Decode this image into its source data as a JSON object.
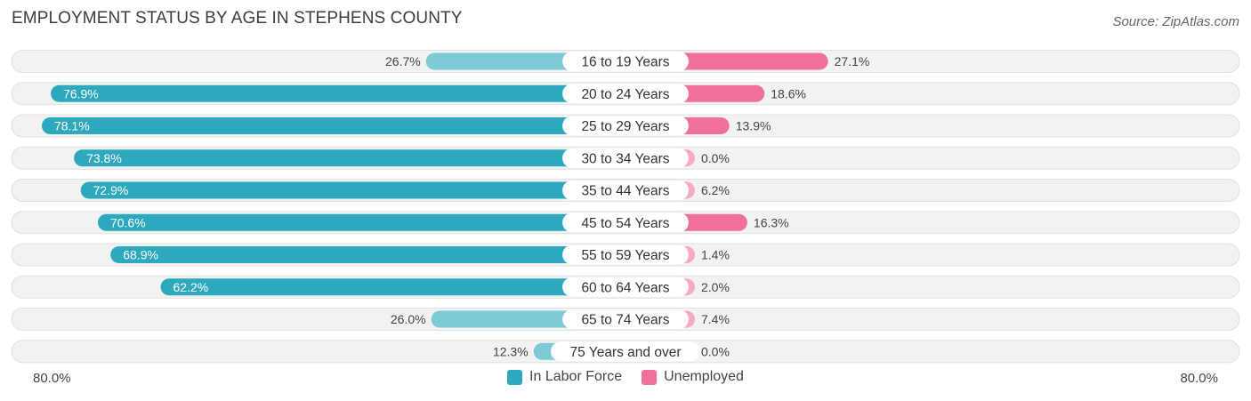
{
  "chart_data": {
    "type": "bar",
    "orientation": "horizontal-diverging",
    "title": "EMPLOYMENT STATUS BY AGE IN STEPHENS COUNTY",
    "source": "Source: ZipAtlas.com",
    "categories": [
      "16 to 19 Years",
      "20 to 24 Years",
      "25 to 29 Years",
      "30 to 34 Years",
      "35 to 44 Years",
      "45 to 54 Years",
      "55 to 59 Years",
      "60 to 64 Years",
      "65 to 74 Years",
      "75 Years and over"
    ],
    "series": [
      {
        "name": "In Labor Force",
        "color": "#2ea8bd",
        "light_color": "#7ccbd6",
        "side": "left",
        "values": [
          26.7,
          76.9,
          78.1,
          73.8,
          72.9,
          70.6,
          68.9,
          62.2,
          26.0,
          12.3
        ],
        "labels": [
          "26.7%",
          "76.9%",
          "78.1%",
          "73.8%",
          "72.9%",
          "70.6%",
          "68.9%",
          "62.2%",
          "26.0%",
          "12.3%"
        ]
      },
      {
        "name": "Unemployed",
        "color": "#f0709a",
        "light_color": "#f7aac3",
        "side": "right",
        "values": [
          27.1,
          18.6,
          13.9,
          0.0,
          6.2,
          16.3,
          1.4,
          2.0,
          7.4,
          0.0
        ],
        "labels": [
          "27.1%",
          "18.6%",
          "13.9%",
          "0.0%",
          "6.2%",
          "16.3%",
          "1.4%",
          "2.0%",
          "7.4%",
          "0.0%"
        ]
      }
    ],
    "axis": {
      "left_label": "80.0%",
      "right_label": "80.0%",
      "max": 80
    },
    "legend": {
      "position": "bottom-center"
    }
  }
}
